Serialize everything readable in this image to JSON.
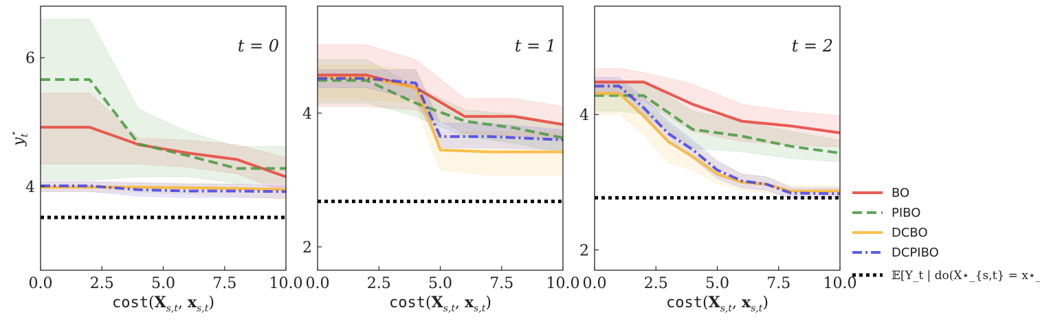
{
  "figure": {
    "xlabel": "cost(X_{s,t}, x_{s,t})",
    "ylabel": "y_t^⋆"
  },
  "legend": [
    {
      "name": "BO",
      "color": "#e8453c",
      "dash": "solid"
    },
    {
      "name": "PIBO",
      "color": "#4c9a45",
      "dash": "dashed"
    },
    {
      "name": "DCBO",
      "color": "#f7b733",
      "dash": "solid"
    },
    {
      "name": "DCPIBO",
      "color": "#4a44e6",
      "dash": "dashdot"
    },
    {
      "name": "𝔼[Y_t | do(X⋆_{s,t} = x⋆_{s,t})]",
      "color": "#000000",
      "dash": "dotted"
    }
  ],
  "chart_data": [
    {
      "type": "line",
      "label": "t = 0",
      "xlim": [
        0,
        10
      ],
      "ylim": [
        2.7,
        6.8
      ],
      "xticks": [
        "0.0",
        "2.5",
        "5.0",
        "7.5",
        "10.0"
      ],
      "xtick_values": [
        0,
        2.5,
        5,
        7.5,
        10
      ],
      "yticks": [
        "4",
        "6"
      ],
      "ytick_values": [
        4,
        6
      ],
      "optimum": 3.52,
      "series": [
        {
          "name": "BO",
          "x": [
            0,
            2,
            4,
            6,
            8,
            10
          ],
          "y": [
            4.92,
            4.92,
            4.65,
            4.52,
            4.42,
            4.15
          ],
          "lower": [
            4.35,
            4.35,
            4.35,
            4.3,
            4.2,
            3.9
          ],
          "upper": [
            5.45,
            5.45,
            4.75,
            4.72,
            4.65,
            4.45
          ]
        },
        {
          "name": "PIBO",
          "x": [
            0,
            2,
            4,
            6,
            8,
            10
          ],
          "y": [
            5.66,
            5.66,
            4.66,
            4.48,
            4.28,
            4.28
          ],
          "lower": [
            4.1,
            4.1,
            4.15,
            4.15,
            4.05,
            4.05
          ],
          "upper": [
            6.6,
            6.6,
            5.2,
            4.85,
            4.62,
            4.62
          ]
        },
        {
          "name": "DCBO",
          "x": [
            0,
            2,
            4,
            6,
            8,
            10
          ],
          "y": [
            3.99,
            3.99,
            3.99,
            3.98,
            3.97,
            3.95
          ],
          "lower": [
            3.92,
            3.92,
            3.9,
            3.88,
            3.85,
            3.8
          ],
          "upper": [
            4.06,
            4.06,
            4.05,
            4.05,
            4.04,
            4.0
          ]
        },
        {
          "name": "DCPIBO",
          "x": [
            0,
            2,
            4,
            6,
            8,
            10
          ],
          "y": [
            4.01,
            4.01,
            3.95,
            3.93,
            3.93,
            3.92
          ],
          "lower": [
            3.92,
            3.92,
            3.85,
            3.83,
            3.83,
            3.82
          ],
          "upper": [
            4.08,
            4.08,
            4.06,
            4.04,
            4.04,
            4.02
          ]
        }
      ]
    },
    {
      "type": "line",
      "label": "t = 1",
      "xlim": [
        0,
        10
      ],
      "ylim": [
        1.65,
        5.6
      ],
      "xticks": [
        "0.0",
        "2.5",
        "5.0",
        "7.5",
        "10.0"
      ],
      "xtick_values": [
        0,
        2.5,
        5,
        7.5,
        10
      ],
      "yticks": [
        "2",
        "4"
      ],
      "ytick_values": [
        2,
        4
      ],
      "optimum": 2.68,
      "series": [
        {
          "name": "BO",
          "x": [
            0,
            2,
            4,
            6,
            8,
            10
          ],
          "y": [
            4.57,
            4.57,
            4.38,
            3.95,
            3.95,
            3.83
          ],
          "lower": [
            4.1,
            4.1,
            4.05,
            3.7,
            3.65,
            3.6
          ],
          "upper": [
            5.02,
            5.02,
            4.8,
            4.22,
            4.22,
            4.1
          ]
        },
        {
          "name": "PIBO",
          "x": [
            0,
            2,
            4,
            6,
            8,
            10
          ],
          "y": [
            4.49,
            4.49,
            4.15,
            3.88,
            3.78,
            3.63
          ],
          "lower": [
            4.15,
            4.15,
            3.95,
            3.65,
            3.55,
            3.4
          ],
          "upper": [
            4.8,
            4.8,
            4.4,
            4.05,
            3.98,
            3.85
          ]
        },
        {
          "name": "DCBO",
          "x": [
            0,
            2,
            4,
            4.5,
            5,
            7,
            10
          ],
          "y": [
            4.53,
            4.53,
            4.38,
            3.95,
            3.45,
            3.42,
            3.42
          ],
          "lower": [
            4.2,
            4.2,
            4.15,
            3.6,
            3.15,
            3.07,
            3.07
          ],
          "upper": [
            4.72,
            4.72,
            4.65,
            4.3,
            3.72,
            3.72,
            3.72
          ]
        },
        {
          "name": "DCPIBO",
          "x": [
            0,
            2,
            4,
            5,
            7,
            10
          ],
          "y": [
            4.52,
            4.52,
            4.45,
            3.65,
            3.65,
            3.6
          ],
          "lower": [
            4.38,
            4.38,
            4.2,
            3.48,
            3.48,
            3.45
          ],
          "upper": [
            4.65,
            4.65,
            4.65,
            3.85,
            3.85,
            3.75
          ]
        }
      ]
    },
    {
      "type": "line",
      "label": "t = 2",
      "xlim": [
        0,
        10
      ],
      "ylim": [
        1.7,
        5.6
      ],
      "xticks": [
        "0.0",
        "2.5",
        "5.0",
        "7.5",
        "10.0"
      ],
      "xtick_values": [
        0,
        2.5,
        5,
        7.5,
        10
      ],
      "yticks": [
        "2",
        "4"
      ],
      "ytick_values": [
        2,
        4
      ],
      "optimum": 2.77,
      "series": [
        {
          "name": "BO",
          "x": [
            0,
            1,
            2,
            4,
            6,
            8,
            10
          ],
          "y": [
            4.48,
            4.48,
            4.48,
            4.15,
            3.9,
            3.83,
            3.73
          ],
          "lower": [
            4.28,
            4.28,
            4.2,
            3.75,
            3.6,
            3.55,
            3.52
          ],
          "upper": [
            4.68,
            4.68,
            4.62,
            4.45,
            4.15,
            4.05,
            3.98
          ]
        },
        {
          "name": "PIBO",
          "x": [
            0,
            1,
            2,
            4,
            6,
            8,
            10
          ],
          "y": [
            4.28,
            4.28,
            4.28,
            3.78,
            3.68,
            3.53,
            3.43
          ],
          "lower": [
            4.05,
            4.05,
            4.0,
            3.5,
            3.45,
            3.35,
            3.3
          ],
          "upper": [
            4.5,
            4.5,
            4.5,
            4.05,
            3.9,
            3.75,
            3.62
          ]
        },
        {
          "name": "DCBO",
          "x": [
            0,
            1,
            2,
            3,
            4,
            5,
            6,
            7,
            8,
            10
          ],
          "y": [
            4.31,
            4.31,
            3.98,
            3.6,
            3.38,
            3.12,
            3.0,
            2.97,
            2.87,
            2.87
          ],
          "lower": [
            4.0,
            4.0,
            3.7,
            3.28,
            3.18,
            2.98,
            2.88,
            2.85,
            2.8,
            2.8
          ],
          "upper": [
            4.5,
            4.5,
            4.15,
            3.85,
            3.55,
            3.3,
            3.12,
            3.08,
            2.95,
            2.95
          ]
        },
        {
          "name": "DCPIBO",
          "x": [
            0,
            1,
            2,
            3,
            4,
            5,
            6,
            7,
            8,
            10
          ],
          "y": [
            4.42,
            4.42,
            4.1,
            3.72,
            3.48,
            3.18,
            3.02,
            2.97,
            2.84,
            2.83
          ],
          "lower": [
            4.3,
            4.3,
            3.95,
            3.58,
            3.35,
            3.05,
            2.92,
            2.88,
            2.76,
            2.76
          ],
          "upper": [
            4.55,
            4.55,
            4.25,
            3.9,
            3.62,
            3.32,
            3.12,
            3.08,
            2.92,
            2.92
          ]
        }
      ]
    }
  ]
}
